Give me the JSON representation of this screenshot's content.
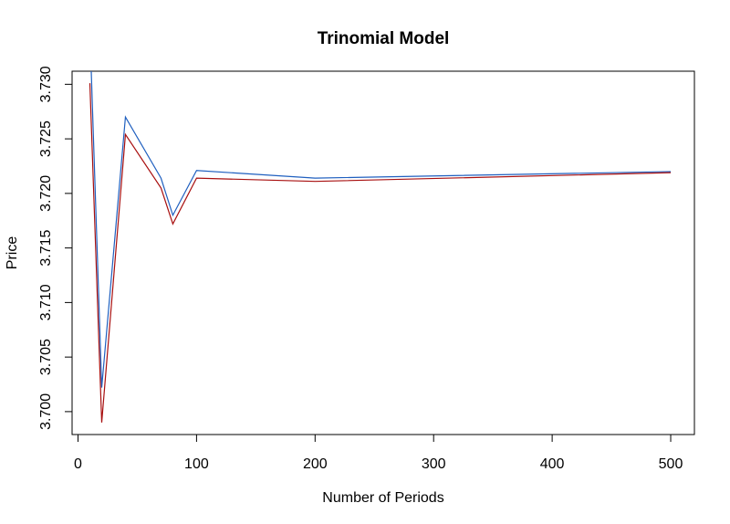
{
  "chart_data": {
    "type": "line",
    "title": "Trinomial Model",
    "xlabel": "Number of Periods",
    "ylabel": "Price",
    "xlim": [
      -5,
      520
    ],
    "ylim": [
      3.6979,
      3.7312
    ],
    "x_ticks": [
      0,
      100,
      200,
      300,
      400,
      500
    ],
    "y_ticks": [
      3.7,
      3.705,
      3.71,
      3.715,
      3.72,
      3.725,
      3.73
    ],
    "y_tick_labels": [
      "3.700",
      "3.705",
      "3.710",
      "3.715",
      "3.720",
      "3.725",
      "3.730"
    ],
    "grid": false,
    "series": [
      {
        "color": "#1f5fbf",
        "x": [
          10,
          20,
          40,
          70,
          80,
          100,
          200,
          500
        ],
        "y": [
          3.735,
          3.7022,
          3.727,
          3.7214,
          3.718,
          3.7221,
          3.7214,
          3.722
        ]
      },
      {
        "color": "#a80f0f",
        "x": [
          10,
          20,
          40,
          70,
          80,
          100,
          200,
          500
        ],
        "y": [
          3.7301,
          3.699,
          3.7254,
          3.7205,
          3.7172,
          3.7214,
          3.7211,
          3.7219
        ]
      }
    ]
  }
}
